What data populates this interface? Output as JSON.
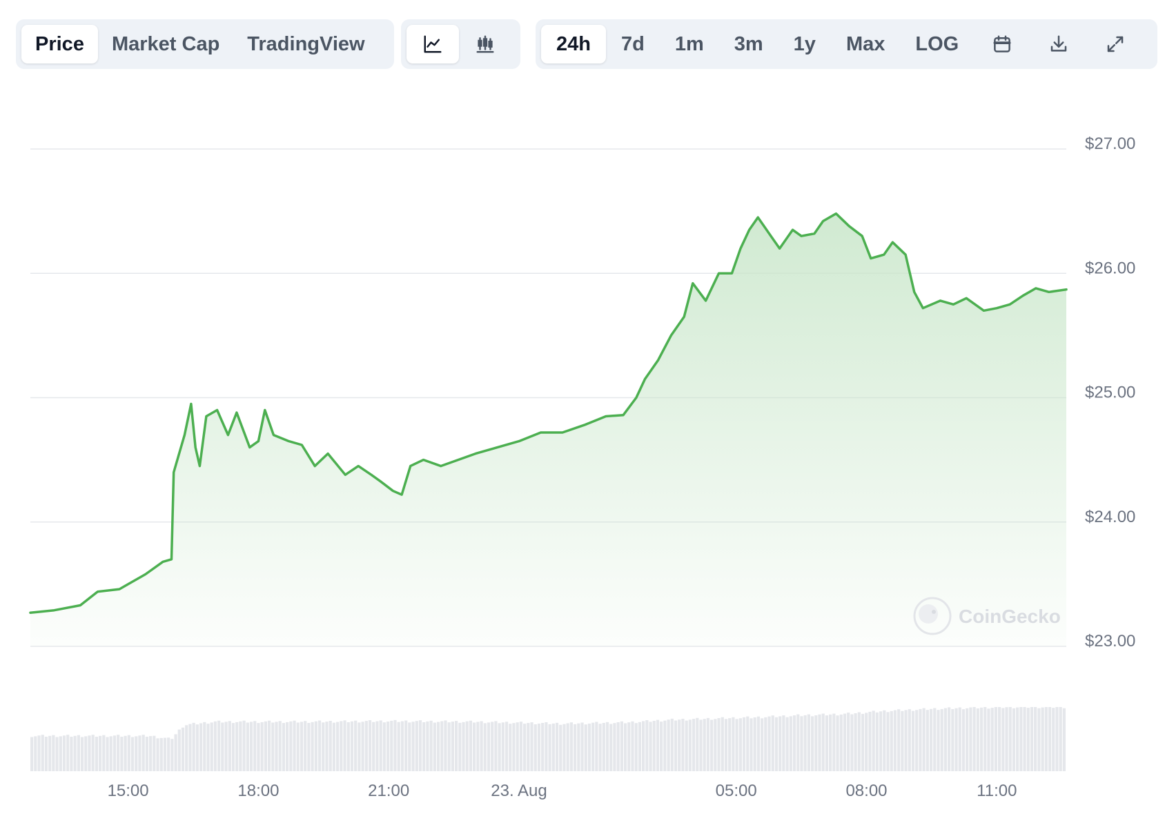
{
  "toolbar": {
    "type_tabs": [
      {
        "label": "Price",
        "active": true
      },
      {
        "label": "Market Cap",
        "active": false
      },
      {
        "label": "TradingView",
        "active": false
      }
    ],
    "style_buttons": [
      {
        "icon": "line-chart-icon",
        "active": true
      },
      {
        "icon": "candlestick-icon",
        "active": false
      }
    ],
    "range_tabs": [
      {
        "label": "24h",
        "active": true
      },
      {
        "label": "7d",
        "active": false
      },
      {
        "label": "1m",
        "active": false
      },
      {
        "label": "3m",
        "active": false
      },
      {
        "label": "1y",
        "active": false
      },
      {
        "label": "Max",
        "active": false
      },
      {
        "label": "LOG",
        "active": false
      }
    ],
    "tool_icons": [
      "calendar-icon",
      "download-icon",
      "expand-icon"
    ]
  },
  "watermark": "CoinGecko",
  "colors": {
    "line": "#4caf50",
    "fill_top": "#c8e6c9",
    "grid": "#e5e7eb",
    "volume": "#e5e7eb",
    "active_bg": "#ffffff",
    "toolbar_bg": "#eef2f7"
  },
  "chart_data": {
    "type": "area",
    "title": "",
    "xlabel": "",
    "ylabel": "",
    "ylim": [
      23,
      27
    ],
    "grid": true,
    "y_ticks": [
      {
        "value": 27,
        "label": "$27.00"
      },
      {
        "value": 26,
        "label": "$26.00"
      },
      {
        "value": 25,
        "label": "$25.00"
      },
      {
        "value": 24,
        "label": "$24.00"
      },
      {
        "value": 23,
        "label": "$23.00"
      }
    ],
    "x_range_hours": [
      12.75,
      36.6
    ],
    "x_ticks": [
      {
        "hour": 15,
        "label": "15:00"
      },
      {
        "hour": 18,
        "label": "18:00"
      },
      {
        "hour": 21,
        "label": "21:00"
      },
      {
        "hour": 24,
        "label": "23. Aug"
      },
      {
        "hour": 29,
        "label": "05:00"
      },
      {
        "hour": 32,
        "label": "08:00"
      },
      {
        "hour": 35,
        "label": "11:00"
      }
    ],
    "series": [
      {
        "points": [
          [
            12.75,
            23.27
          ],
          [
            13.3,
            23.29
          ],
          [
            13.9,
            23.33
          ],
          [
            14.3,
            23.44
          ],
          [
            14.8,
            23.46
          ],
          [
            15.0,
            23.5
          ],
          [
            15.4,
            23.58
          ],
          [
            15.8,
            23.68
          ],
          [
            16.0,
            23.7
          ],
          [
            16.05,
            24.4
          ],
          [
            16.3,
            24.7
          ],
          [
            16.45,
            24.95
          ],
          [
            16.55,
            24.6
          ],
          [
            16.65,
            24.45
          ],
          [
            16.8,
            24.85
          ],
          [
            17.05,
            24.9
          ],
          [
            17.3,
            24.7
          ],
          [
            17.5,
            24.88
          ],
          [
            17.8,
            24.6
          ],
          [
            18.0,
            24.65
          ],
          [
            18.15,
            24.9
          ],
          [
            18.35,
            24.7
          ],
          [
            18.7,
            24.65
          ],
          [
            19.0,
            24.62
          ],
          [
            19.3,
            24.45
          ],
          [
            19.6,
            24.55
          ],
          [
            20.0,
            24.38
          ],
          [
            20.3,
            24.45
          ],
          [
            20.6,
            24.38
          ],
          [
            20.8,
            24.33
          ],
          [
            21.1,
            24.25
          ],
          [
            21.3,
            24.22
          ],
          [
            21.5,
            24.45
          ],
          [
            21.8,
            24.5
          ],
          [
            22.2,
            24.45
          ],
          [
            22.6,
            24.5
          ],
          [
            23.0,
            24.55
          ],
          [
            23.5,
            24.6
          ],
          [
            24.0,
            24.65
          ],
          [
            24.5,
            24.72
          ],
          [
            25.0,
            24.72
          ],
          [
            25.5,
            24.78
          ],
          [
            26.0,
            24.85
          ],
          [
            26.4,
            24.86
          ],
          [
            26.7,
            25.0
          ],
          [
            26.9,
            25.15
          ],
          [
            27.2,
            25.3
          ],
          [
            27.5,
            25.5
          ],
          [
            27.8,
            25.65
          ],
          [
            28.0,
            25.92
          ],
          [
            28.3,
            25.78
          ],
          [
            28.6,
            26.0
          ],
          [
            28.9,
            26.0
          ],
          [
            29.1,
            26.2
          ],
          [
            29.3,
            26.35
          ],
          [
            29.5,
            26.45
          ],
          [
            29.8,
            26.3
          ],
          [
            30.0,
            26.2
          ],
          [
            30.3,
            26.35
          ],
          [
            30.5,
            26.3
          ],
          [
            30.8,
            26.32
          ],
          [
            31.0,
            26.42
          ],
          [
            31.3,
            26.48
          ],
          [
            31.6,
            26.38
          ],
          [
            31.9,
            26.3
          ],
          [
            32.1,
            26.12
          ],
          [
            32.4,
            26.15
          ],
          [
            32.6,
            26.25
          ],
          [
            32.9,
            26.15
          ],
          [
            33.1,
            25.85
          ],
          [
            33.3,
            25.72
          ],
          [
            33.7,
            25.78
          ],
          [
            34.0,
            25.75
          ],
          [
            34.3,
            25.8
          ],
          [
            34.7,
            25.7
          ],
          [
            35.0,
            25.72
          ],
          [
            35.3,
            25.75
          ],
          [
            35.6,
            25.82
          ],
          [
            35.9,
            25.88
          ],
          [
            36.2,
            25.85
          ],
          [
            36.6,
            25.87
          ]
        ]
      }
    ],
    "volume": [
      [
        12.75,
        0.55
      ],
      [
        15.5,
        0.55
      ],
      [
        16.0,
        0.5
      ],
      [
        16.3,
        0.72
      ],
      [
        17.0,
        0.77
      ],
      [
        19.0,
        0.77
      ],
      [
        21.0,
        0.78
      ],
      [
        23.0,
        0.77
      ],
      [
        25.0,
        0.74
      ],
      [
        26.5,
        0.76
      ],
      [
        27.5,
        0.8
      ],
      [
        28.5,
        0.82
      ],
      [
        29.5,
        0.84
      ],
      [
        30.5,
        0.87
      ],
      [
        31.5,
        0.89
      ],
      [
        32.5,
        0.94
      ],
      [
        33.5,
        0.97
      ],
      [
        34.5,
        0.99
      ],
      [
        35.5,
        1.0
      ],
      [
        36.6,
        1.0
      ]
    ]
  }
}
